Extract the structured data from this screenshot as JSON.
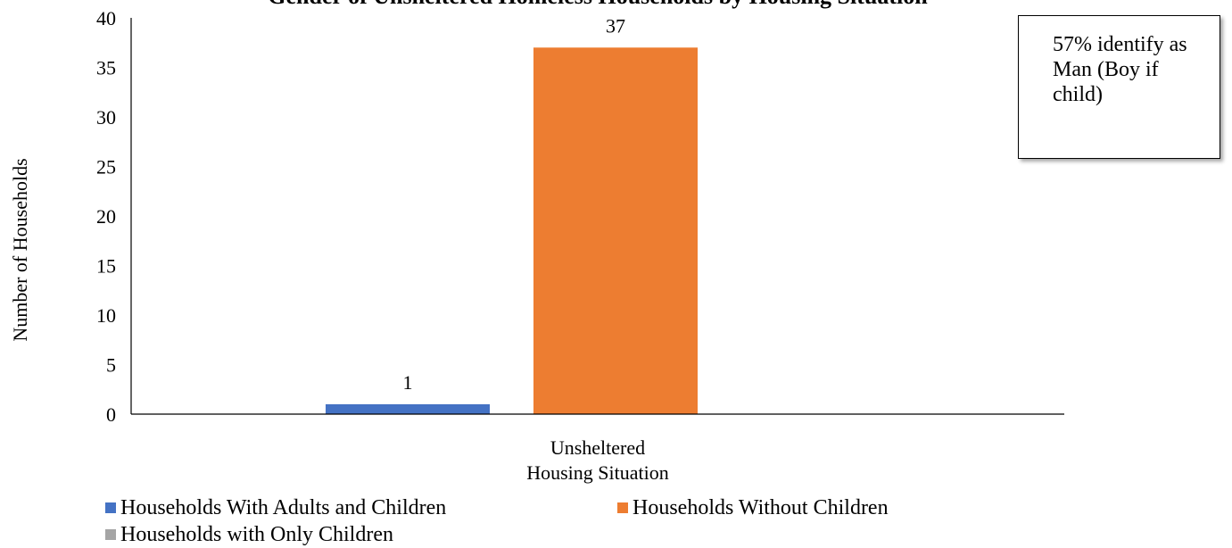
{
  "chart_data": {
    "type": "bar",
    "title": "Gender of Unsheltered Homeless Households by Housing Situation",
    "categories": [
      "Unsheltered"
    ],
    "xlabel": "Housing Situation",
    "ylabel": "Number of Households",
    "ylim": [
      0,
      40
    ],
    "yticks": [
      0,
      5,
      10,
      15,
      20,
      25,
      30,
      35,
      40
    ],
    "grid": false,
    "legend_position": "bottom",
    "series": [
      {
        "name": "Households With Adults and Children",
        "values": [
          1
        ],
        "color": "#4472C4"
      },
      {
        "name": "Households Without Children",
        "values": [
          37
        ],
        "color": "#ED7D31"
      },
      {
        "name": "Households with Only Children",
        "values": [
          0
        ],
        "color": "#A5A5A5"
      }
    ],
    "data_labels": [
      "1",
      "37"
    ],
    "annotation": "57% identify as Man (Boy if child)"
  }
}
